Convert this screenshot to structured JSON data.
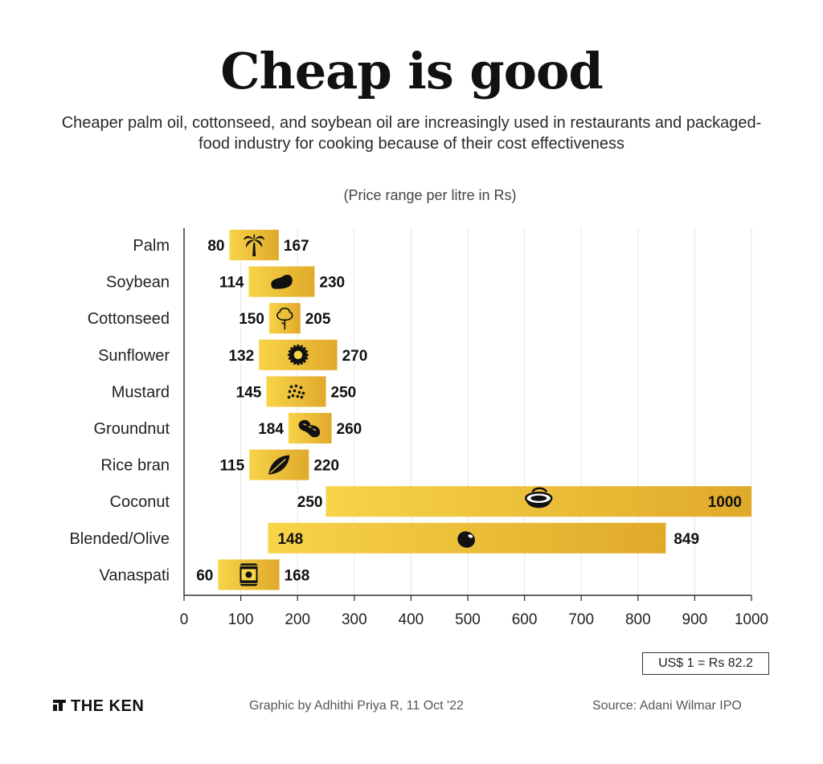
{
  "header": {
    "title": "Cheap is good",
    "subtitle": "Cheaper palm oil, cottonseed, and soybean oil are increasingly used in restaurants and packaged-food industry for cooking because of their cost effectiveness",
    "unit_note": "(Price range per litre in Rs)"
  },
  "chart_data": {
    "type": "bar",
    "subtype": "floating-range",
    "categories": [
      "Palm",
      "Soybean",
      "Cottonseed",
      "Sunflower",
      "Mustard",
      "Groundnut",
      "Rice bran",
      "Coconut",
      "Blended/Olive",
      "Vanaspati"
    ],
    "min_values": [
      80,
      114,
      150,
      132,
      145,
      184,
      115,
      250,
      148,
      60
    ],
    "max_values": [
      167,
      230,
      205,
      270,
      250,
      260,
      220,
      1000,
      849,
      168
    ],
    "icons": [
      "palm-tree-icon",
      "soybean-icon",
      "cotton-plant-icon",
      "sunflower-icon",
      "mustard-seeds-icon",
      "peanut-icon",
      "leaf-icon",
      "coconut-icon",
      "olive-icon",
      "tin-can-icon"
    ],
    "xticks": [
      0,
      100,
      200,
      300,
      400,
      500,
      600,
      700,
      800,
      900,
      1000
    ],
    "xlim": [
      0,
      1000
    ],
    "grid": true,
    "colors": {
      "bar_start": "#f7d448",
      "bar_end": "#e0a92a",
      "icon": "#111111",
      "grid": "#e6e6e6"
    }
  },
  "notes": {
    "exchange_rate": "US$ 1 = Rs 82.2"
  },
  "footer": {
    "brand": "THE KEN",
    "credit": "Graphic by Adhithi Priya R, 11 Oct '22",
    "source": "Source: Adani Wilmar IPO"
  }
}
